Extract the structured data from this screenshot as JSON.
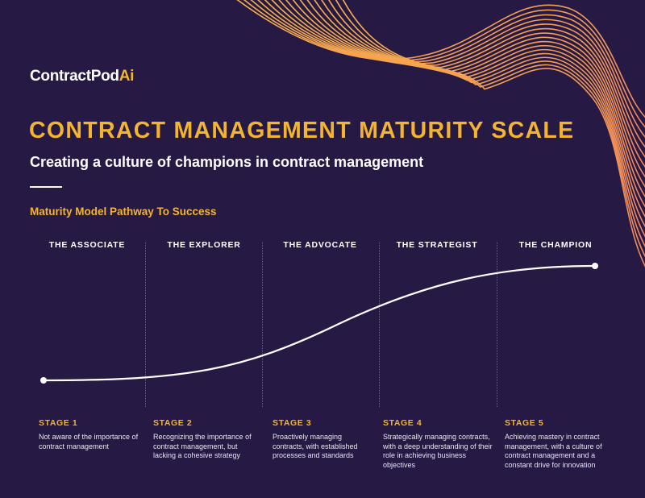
{
  "logo": {
    "text_main": "ContractPod",
    "text_accent": "Ai"
  },
  "title": "CONTRACT MANAGEMENT MATURITY SCALE",
  "subtitle": "Creating a culture of champions in contract management",
  "section_title": "Maturity Model Pathway To Success",
  "stages": [
    {
      "name": "THE ASSOCIATE",
      "label": "STAGE 1",
      "description": "Not aware of the importance of contract management"
    },
    {
      "name": "THE EXPLORER",
      "label": "STAGE 2",
      "description": "Recognizing the importance of contract management, but lacking a cohesive strategy"
    },
    {
      "name": "THE ADVOCATE",
      "label": "STAGE 3",
      "description": "Proactively managing contracts, with established processes and standards"
    },
    {
      "name": "THE STRATEGIST",
      "label": "STAGE 4",
      "description": "Strategically managing contracts, with a deep understanding of their role in achieving business objectives"
    },
    {
      "name": "THE CHAMPION",
      "label": "STAGE 5",
      "description": "Achieving mastery in contract management, with a culture of contract management and a constant drive for innovation"
    }
  ],
  "colors": {
    "background": "#261a45",
    "accent": "#f2b431",
    "wave": "#f29a5a",
    "text": "#ffffff"
  }
}
